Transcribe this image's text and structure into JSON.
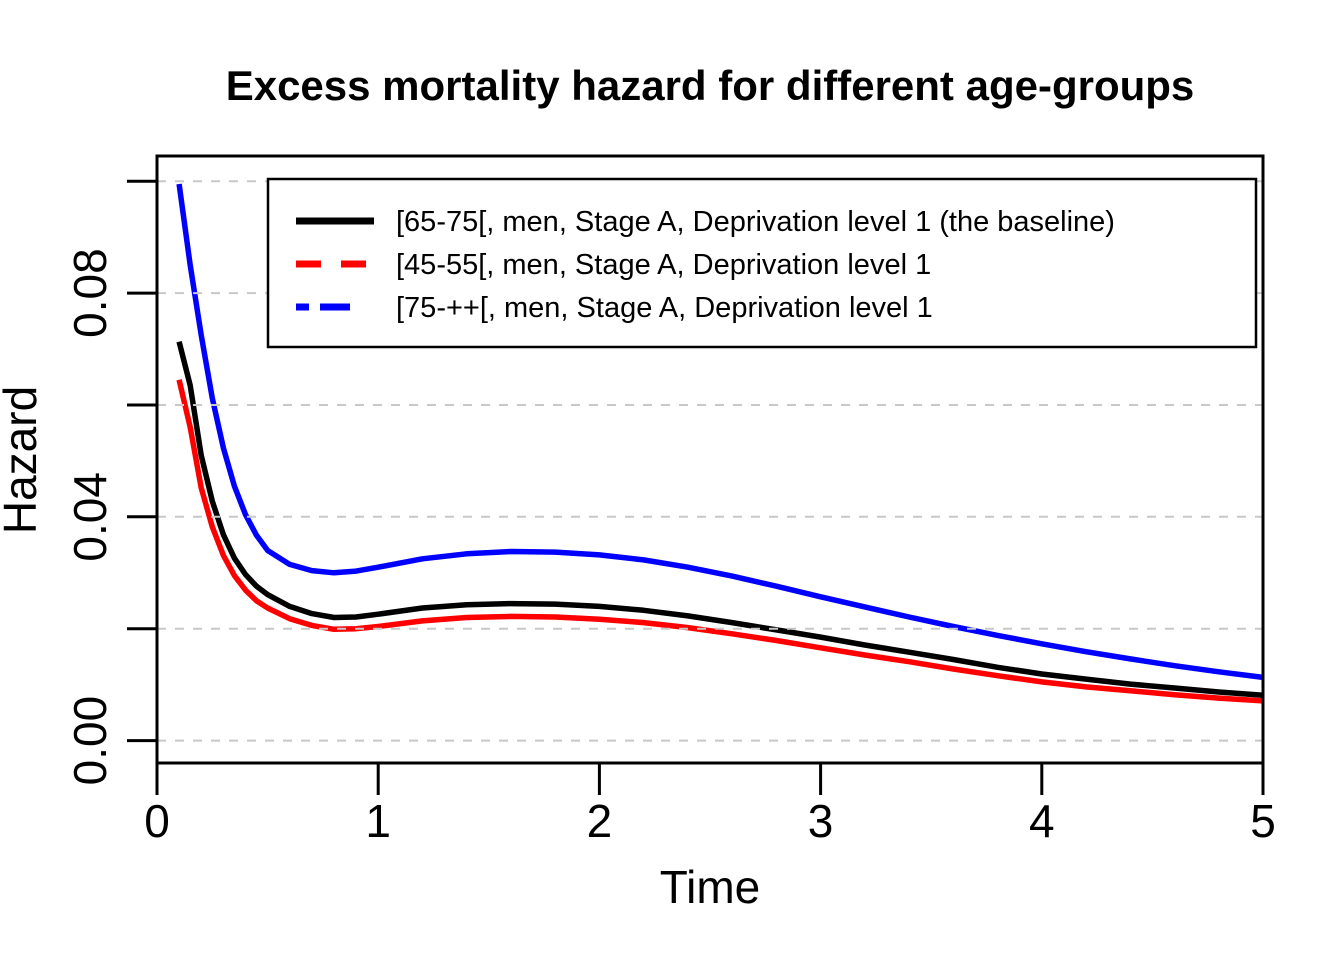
{
  "chart_data": {
    "type": "line",
    "title": "Excess mortality hazard for different age-groups",
    "xlabel": "Time",
    "ylabel": "Hazard",
    "xlim": [
      0,
      5
    ],
    "ylim": [
      -0.004,
      0.1045
    ],
    "grid": "horizontal-dashed-lightgray",
    "legend_position": "top-inside",
    "x_ticks": [
      {
        "value": 0,
        "label": "0"
      },
      {
        "value": 1,
        "label": "1"
      },
      {
        "value": 2,
        "label": "2"
      },
      {
        "value": 3,
        "label": "3"
      },
      {
        "value": 4,
        "label": "4"
      },
      {
        "value": 5,
        "label": "5"
      }
    ],
    "y_ticks": [
      {
        "value": 0.0,
        "label": "0.00"
      },
      {
        "value": 0.02,
        "label": ""
      },
      {
        "value": 0.04,
        "label": "0.04"
      },
      {
        "value": 0.06,
        "label": ""
      },
      {
        "value": 0.08,
        "label": "0.08"
      },
      {
        "value": 0.1,
        "label": ""
      }
    ],
    "x": [
      0.1,
      0.15,
      0.2,
      0.25,
      0.3,
      0.35,
      0.4,
      0.45,
      0.5,
      0.6,
      0.7,
      0.8,
      0.9,
      1.0,
      1.2,
      1.4,
      1.6,
      1.8,
      2.0,
      2.2,
      2.4,
      2.6,
      2.8,
      3.0,
      3.2,
      3.4,
      3.6,
      3.8,
      4.0,
      4.2,
      4.4,
      4.6,
      4.8,
      5.0
    ],
    "series": [
      {
        "name": "[65-75[, men, Stage A, Deprivation level 1 (the baseline)",
        "color": "#000000",
        "curve_style": "solid",
        "legend_key_style": "solid",
        "values": [
          0.0713,
          0.0635,
          0.051,
          0.0428,
          0.0368,
          0.0326,
          0.0297,
          0.0276,
          0.0261,
          0.024,
          0.0227,
          0.022,
          0.0221,
          0.0226,
          0.0237,
          0.0243,
          0.0245,
          0.0244,
          0.024,
          0.0233,
          0.0223,
          0.0211,
          0.0198,
          0.0185,
          0.0171,
          0.0158,
          0.0145,
          0.0131,
          0.0119,
          0.011,
          0.0101,
          0.0094,
          0.0087,
          0.0081
        ]
      },
      {
        "name": "[45-55[, men, Stage A, Deprivation level 1",
        "color": "#FF0000",
        "curve_style": "solid",
        "legend_key_style": "dashed",
        "values": [
          0.0645,
          0.056,
          0.0452,
          0.0382,
          0.0331,
          0.0295,
          0.0269,
          0.025,
          0.0237,
          0.0218,
          0.0206,
          0.0199,
          0.02,
          0.0204,
          0.0214,
          0.022,
          0.0222,
          0.0221,
          0.0217,
          0.0211,
          0.0202,
          0.0191,
          0.0179,
          0.0166,
          0.0153,
          0.0141,
          0.0128,
          0.0116,
          0.0105,
          0.0096,
          0.0089,
          0.0082,
          0.0076,
          0.0071
        ]
      },
      {
        "name": "[75-++[, men, Stage A, Deprivation level 1",
        "color": "#0000FF",
        "curve_style": "solid",
        "legend_key_style": "dashdot",
        "values": [
          0.0995,
          0.085,
          0.0725,
          0.0612,
          0.0523,
          0.0455,
          0.0404,
          0.0367,
          0.034,
          0.0315,
          0.0304,
          0.03,
          0.0303,
          0.031,
          0.0325,
          0.0334,
          0.0338,
          0.0337,
          0.0332,
          0.0323,
          0.031,
          0.0294,
          0.0276,
          0.0257,
          0.0239,
          0.0221,
          0.0204,
          0.0188,
          0.0173,
          0.0159,
          0.0146,
          0.0134,
          0.0123,
          0.0113
        ]
      }
    ]
  },
  "colors": {
    "background": "#FFFFFF",
    "axis": "#000000",
    "grid": "#C8C8C8",
    "baseline_series": "#000000",
    "younger_series": "#FF0000",
    "older_series": "#0000FF"
  }
}
